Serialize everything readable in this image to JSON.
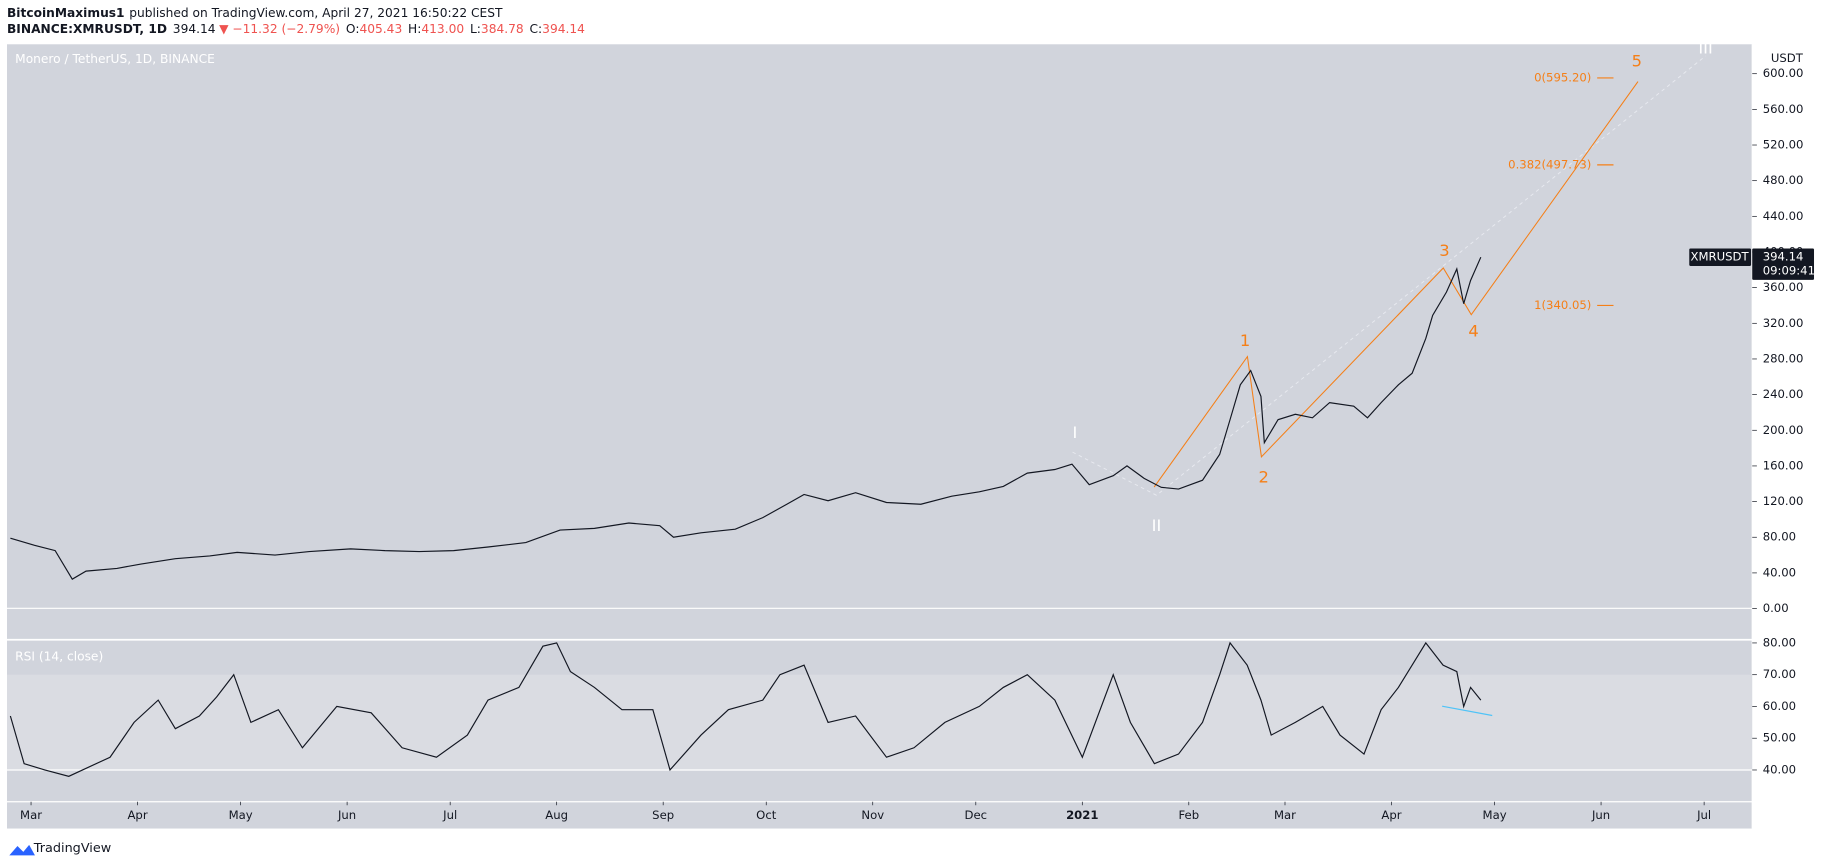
{
  "header": {
    "author": "BitcoinMaximus1",
    "published": "published on TradingView.com, April 27, 2021 16:50:22 CEST",
    "symbol": "BINANCE:XMRUSDT, 1D",
    "last": "394.14",
    "change": "▼ −11.32 (−2.79%)",
    "ohlc": [
      {
        "label": "O:",
        "value": "405.43"
      },
      {
        "label": "H:",
        "value": "413.00"
      },
      {
        "label": "L:",
        "value": "384.78"
      },
      {
        "label": "C:",
        "value": "394.14"
      }
    ]
  },
  "chart_data": [
    {
      "type": "line",
      "title": "Monero / TetherUS, 1D, BINANCE",
      "axis_unit": "USDT",
      "countdown": "09:09:41",
      "x": [
        -6,
        1,
        7,
        12,
        16,
        25,
        32,
        42,
        52,
        60,
        71,
        81,
        93,
        103,
        113,
        123,
        133,
        144,
        154,
        164,
        174,
        183,
        187,
        195,
        205,
        213,
        220,
        225,
        232,
        240,
        249,
        259,
        268,
        276,
        283,
        290,
        298,
        303,
        308,
        315,
        319,
        324,
        329,
        334,
        341,
        346,
        349,
        352,
        355,
        358,
        359,
        363,
        368,
        373,
        378,
        385,
        389,
        393,
        398,
        402,
        406,
        408,
        412,
        415,
        417,
        419,
        422
      ],
      "series": [
        {
          "name": "XMRUSDT",
          "color": "#131722",
          "values": [
            79,
            71,
            65,
            33,
            42,
            45,
            50,
            56,
            59,
            63,
            60,
            64,
            67,
            65,
            64,
            65,
            69,
            74,
            88,
            90,
            96,
            93,
            80,
            85,
            89,
            102,
            117,
            128,
            121,
            130,
            119,
            117,
            126,
            131,
            137,
            152,
            156,
            162,
            139,
            149,
            160,
            146,
            136,
            134,
            144,
            173,
            212,
            251,
            267,
            238,
            186,
            212,
            218,
            214,
            231,
            227,
            214,
            231,
            251,
            264,
            303,
            329,
            355,
            381,
            342,
            368,
            394.14
          ]
        }
      ],
      "xlim": [
        -7,
        501
      ],
      "ylim": [
        -35,
        633
      ],
      "yticks": [
        {
          "value": 0,
          "label": "0.00"
        },
        {
          "value": 40,
          "label": "40.00"
        },
        {
          "value": 80,
          "label": "80.00"
        },
        {
          "value": 120,
          "label": "120.00"
        },
        {
          "value": 160,
          "label": "160.00"
        },
        {
          "value": 200,
          "label": "200.00"
        },
        {
          "value": 240,
          "label": "240.00"
        },
        {
          "value": 280,
          "label": "280.00"
        },
        {
          "value": 320,
          "label": "320.00"
        },
        {
          "value": 360,
          "label": "360.00"
        },
        {
          "value": 400,
          "label": "400.00"
        },
        {
          "value": 440,
          "label": "440.00"
        },
        {
          "value": 480,
          "label": "480.00"
        },
        {
          "value": 520,
          "label": "520.00"
        },
        {
          "value": 560,
          "label": "560.00"
        },
        {
          "value": 600,
          "label": "600.00"
        }
      ],
      "fib_levels": [
        {
          "value": 595.2,
          "label": "0(595.20)"
        },
        {
          "value": 497.73,
          "label": "0.382(497.73)"
        },
        {
          "value": 340.05,
          "label": "1(340.05)"
        }
      ],
      "fib_color": "#f57f17",
      "wave_labels": [
        "1",
        "2",
        "3",
        "4",
        "5",
        "I",
        "II",
        "III"
      ]
    },
    {
      "type": "line",
      "title": "RSI (14, close)",
      "color": "#131722",
      "x": [
        -6,
        -2,
        4,
        11,
        23,
        30,
        37,
        42,
        49,
        54,
        59,
        64,
        72,
        79,
        89,
        99,
        108,
        118,
        127,
        133,
        142,
        149,
        153,
        157,
        164,
        172,
        181,
        186,
        195,
        203,
        213,
        218,
        225,
        232,
        240,
        249,
        257,
        266,
        276,
        283,
        290,
        298,
        306,
        315,
        320,
        327,
        334,
        341,
        346,
        349,
        354,
        358,
        361,
        368,
        376,
        381,
        388,
        393,
        398,
        406,
        411,
        415,
        417,
        419,
        422
      ],
      "values": [
        57,
        42,
        40,
        38,
        44,
        55,
        62,
        53,
        57,
        63,
        70,
        55,
        59,
        47,
        60,
        58,
        47,
        44,
        51,
        62,
        66,
        79,
        80,
        71,
        66,
        59,
        59,
        40,
        51,
        59,
        62,
        70,
        73,
        55,
        57,
        44,
        47,
        55,
        60,
        66,
        70,
        62,
        44,
        70,
        55,
        42,
        45,
        55,
        70,
        80,
        73,
        62,
        51,
        55,
        60,
        51,
        45,
        59,
        66,
        80,
        73,
        71,
        60,
        66,
        62
      ],
      "xlim": [
        -7,
        501
      ],
      "ylim": [
        30,
        81
      ],
      "band": [
        40,
        70
      ],
      "yticks": [
        {
          "value": 40,
          "label": "40.00"
        },
        {
          "value": 50,
          "label": "50.00"
        },
        {
          "value": 60,
          "label": "60.00"
        },
        {
          "value": 70,
          "label": "70.00"
        },
        {
          "value": 80,
          "label": "80.00"
        }
      ],
      "xticks": [
        {
          "value": 0,
          "label": "Mar"
        },
        {
          "value": 31,
          "label": "Apr"
        },
        {
          "value": 61,
          "label": "May"
        },
        {
          "value": 92,
          "label": "Jun"
        },
        {
          "value": 122,
          "label": "Jul"
        },
        {
          "value": 153,
          "label": "Aug"
        },
        {
          "value": 184,
          "label": "Sep"
        },
        {
          "value": 214,
          "label": "Oct"
        },
        {
          "value": 245,
          "label": "Nov"
        },
        {
          "value": 275,
          "label": "Dec"
        },
        {
          "value": 306,
          "label": "2021"
        },
        {
          "value": 337,
          "label": "Feb"
        },
        {
          "value": 365,
          "label": "Mar"
        },
        {
          "value": 396,
          "label": "Apr"
        },
        {
          "value": 426,
          "label": "May"
        },
        {
          "value": 457,
          "label": "Jun"
        },
        {
          "value": 487,
          "label": "Jul"
        }
      ]
    }
  ],
  "footer": {
    "brand": "TradingView"
  }
}
